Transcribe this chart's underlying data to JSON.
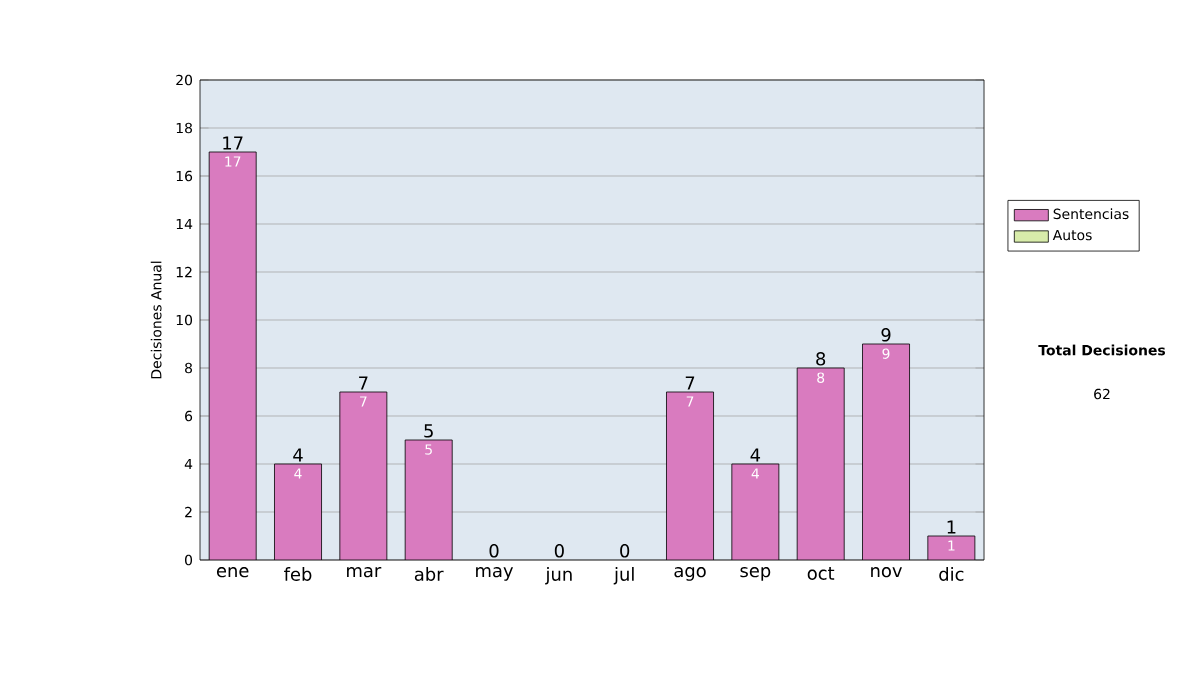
{
  "chart_data": {
    "type": "bar",
    "stacked": true,
    "ylabel": "Decisiones Anual",
    "categories": [
      "ene",
      "feb",
      "mar",
      "abr",
      "may",
      "jun",
      "jul",
      "ago",
      "sep",
      "oct",
      "nov",
      "dic"
    ],
    "series": [
      {
        "name": "Sentencias",
        "color": "#d97bbf",
        "values": [
          17,
          4,
          7,
          5,
          0,
          0,
          0,
          7,
          4,
          8,
          9,
          1
        ],
        "value_labels": [
          "17",
          "4",
          "7",
          "5",
          null,
          null,
          null,
          "7",
          "4",
          "8",
          "9",
          "1"
        ]
      },
      {
        "name": "Autos",
        "color": "#d8ecaa",
        "values": [
          0,
          0,
          0,
          0,
          0,
          0,
          0,
          0,
          0,
          0,
          0,
          0
        ]
      }
    ],
    "totals": [
      "17",
      "4",
      "7",
      "5",
      "0",
      "0",
      "0",
      "7",
      "4",
      "8",
      "9",
      "1"
    ],
    "ylim": [
      0,
      20
    ],
    "yticks": [
      0,
      2,
      4,
      6,
      8,
      10,
      12,
      14,
      16,
      18,
      20
    ],
    "grid": "y",
    "legend": "right",
    "annotations": [
      "Total Decisiones",
      "62"
    ]
  }
}
